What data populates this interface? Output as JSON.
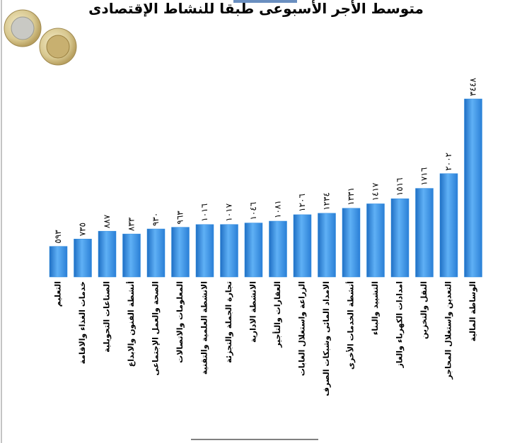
{
  "chart_data": {
    "type": "bar",
    "title": "متوسط الأجر الأسبوعى  طبقا للنشاط الإقتصادى",
    "categories": [
      "التعليم",
      "خدمات الغذاء والاقامة",
      "الصناعات التحويلية",
      "أنشطة الفنون والابداع",
      "الصحة والعمل الإجتماعى",
      "المعلومات والاتصالات",
      "الانشطة العلمية والتقنية",
      "تجارة الجملة والتجزئة",
      "الانشطة الادارية",
      "العقارات والتأجير",
      "الزراعة واستغلال الغابات",
      "الامداد المائى وشبكات الصرف",
      "أنشطة الخدمات الأخرى",
      "التشييد والبناء",
      "امدادات الكهرباء والغاز",
      "النقل والتخزين",
      "التعدين واستغلال المحاجر",
      "الوساطة المالية"
    ],
    "values": [
      593,
      735,
      887,
      833,
      930,
      963,
      1016,
      1017,
      1046,
      1081,
      1206,
      1234,
      1331,
      1417,
      1516,
      1716,
      2002,
      3448
    ],
    "value_labels": [
      "٥٩٣",
      "٧٣٥",
      "٨٨٧",
      "٨٣٣",
      "٩٣٠",
      "٩٦٣",
      "١٠١٦",
      "١٠١٧",
      "١٠٤٦",
      "١٠٨١",
      "١٢٠٦",
      "١٢٣٤",
      "١٣٣١",
      "١٤١٧",
      "١٥١٦",
      "١٧١٦",
      "٢٠٠٢",
      "٣٤٤٨"
    ],
    "color": "#2f8be0"
  }
}
